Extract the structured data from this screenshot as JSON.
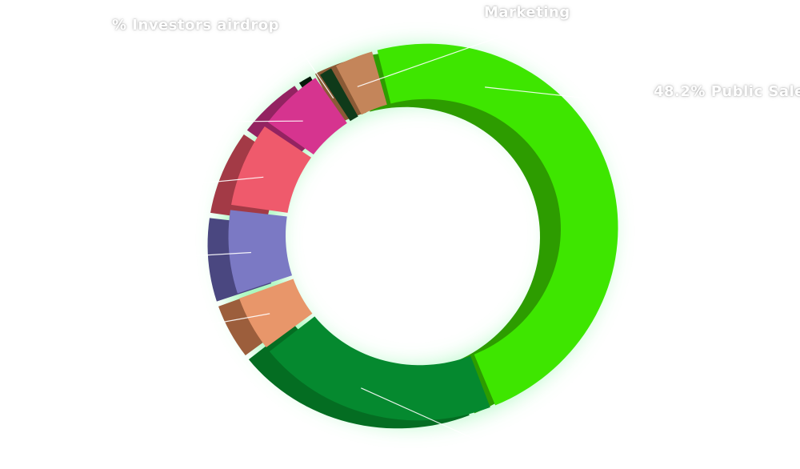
{
  "chart_data": {
    "type": "pie",
    "style": "3d-donut",
    "glow_color": "#9cf7b4",
    "slices": [
      {
        "label": "Public Sale",
        "percent_text": "48.2%",
        "display": "48.2% Public Sale",
        "value": 48.2,
        "color": "#3ee600",
        "side_color": "#2d9c00"
      },
      {
        "label": "",
        "value": 20.5,
        "color": "#05892f",
        "side_color": "#046d22"
      },
      {
        "label": "",
        "value": 5.2,
        "color": "#e8966a",
        "side_color": "#9c5e3c"
      },
      {
        "label": "",
        "value": 7.6,
        "color": "#7b79c4",
        "side_color": "#4a4780"
      },
      {
        "label": "",
        "value": 7.6,
        "color": "#ef5a6c",
        "side_color": "#a33a46"
      },
      {
        "label": "",
        "value": 5.8,
        "color": "#d6348f",
        "side_color": "#932361"
      },
      {
        "label": "Investors airdrop",
        "display": "% Investors airdrop",
        "value": 1.5,
        "color": "#0f3a1a",
        "side_color": "#061a0b"
      },
      {
        "label": "Marketing",
        "display": "Marketing",
        "value": 3.6,
        "color": "#c4855a",
        "side_color": "#8a5a36"
      }
    ]
  }
}
